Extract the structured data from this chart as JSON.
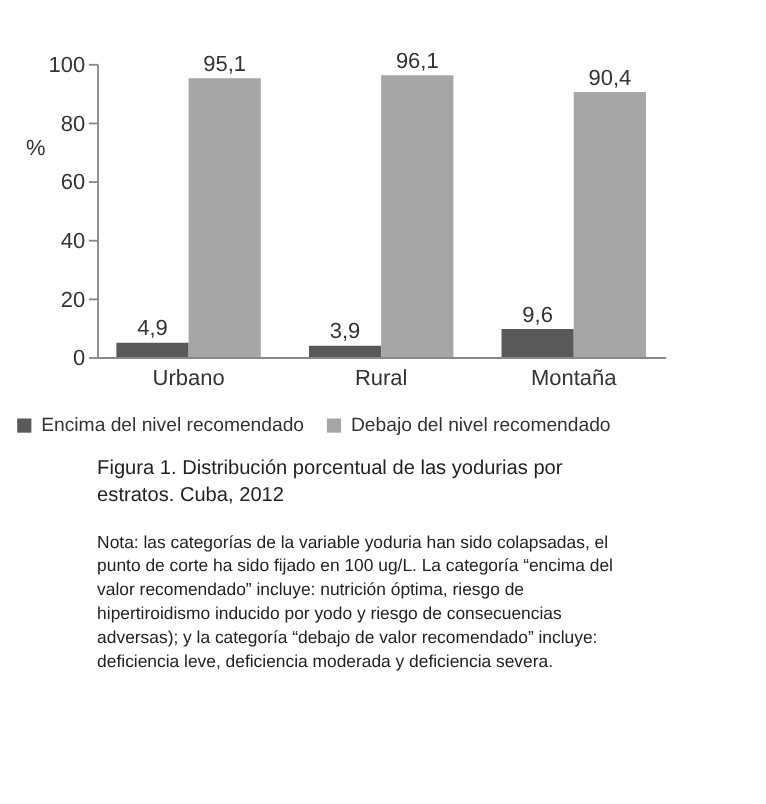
{
  "chart_data": {
    "type": "bar",
    "ylabel": "%",
    "categories": [
      "Urbano",
      "Rural",
      "Montaña"
    ],
    "series": [
      {
        "name": "Encima del nivel recomendado",
        "color": "#595959",
        "values": [
          4.9,
          3.9,
          9.6
        ]
      },
      {
        "name": "Debajo del nivel recomendado",
        "color": "#a6a6a6",
        "values": [
          95.1,
          96.1,
          90.4
        ]
      }
    ],
    "value_labels": [
      [
        "4,9",
        "3,9",
        "9,6"
      ],
      [
        "95,1",
        "96,1",
        "90,4"
      ]
    ],
    "ylim": [
      0,
      100
    ],
    "yticks": [
      0,
      20,
      40,
      60,
      80,
      100
    ],
    "grid": false,
    "legend": "bottom",
    "annotations": [
      "Figura 1. Distribución porcentual de las yodurias por estratos. Cuba, 2012",
      "Nota: las categorías de la variable yoduria han sido colapsadas, el punto de corte ha sido fijado en 100 ug/L. La categoría “encima del valor recomendado” incluye: nutrición óptima, riesgo de hipertiroidismo inducido por yodo y riesgo de consecuencias adversas); y la categoría “debajo de valor recomendado” incluye: deficiencia leve, deficiencia moderada y deficiencia severa."
    ]
  }
}
